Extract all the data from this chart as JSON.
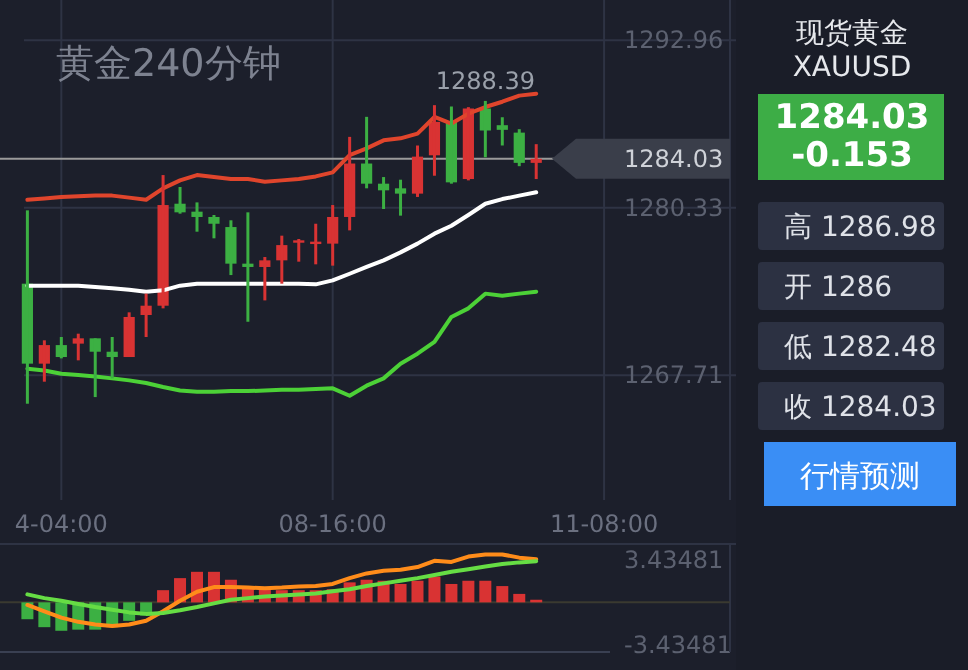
{
  "chart_data": [
    {
      "type": "candlestick",
      "title": "黄金240分钟",
      "categories": [
        null,
        null,
        "4-04:00",
        null,
        null,
        null,
        null,
        null,
        null,
        null,
        null,
        null,
        null,
        null,
        null,
        null,
        null,
        null,
        "08-16:00",
        null,
        null,
        null,
        null,
        null,
        null,
        null,
        null,
        null,
        null,
        null,
        null,
        null,
        null,
        null,
        "11-08:00"
      ],
      "ohlc": [
        [
          1274.61,
          1280.14,
          1265.56,
          1268.58
        ],
        [
          1268.58,
          1270.34,
          1267.22,
          1269.98
        ],
        [
          1269.98,
          1270.59,
          1268.98,
          1269.08
        ],
        [
          1270.09,
          1270.84,
          1268.83,
          1270.49
        ],
        [
          1270.49,
          1270.49,
          1266.06,
          1269.48
        ],
        [
          1269.48,
          1270.59,
          1267.47,
          1269.08
        ],
        [
          1269.08,
          1272.45,
          1269.08,
          1272.1
        ],
        [
          1272.25,
          1273.86,
          1270.59,
          1272.95
        ],
        [
          1272.95,
          1282.8,
          1272.75,
          1280.54
        ],
        [
          1280.64,
          1281.9,
          1279.89,
          1279.99
        ],
        [
          1280.04,
          1280.74,
          1278.53,
          1279.64
        ],
        [
          1279.64,
          1279.79,
          1278.03,
          1279.13
        ],
        [
          1278.88,
          1279.39,
          1275.26,
          1276.12
        ],
        [
          1276.12,
          1279.99,
          1271.74,
          1275.87
        ],
        [
          1275.87,
          1276.62,
          1273.35,
          1276.37
        ],
        [
          1276.37,
          1278.23,
          1274.61,
          1277.52
        ],
        [
          1277.78,
          1277.98,
          1276.27,
          1277.88
        ],
        [
          1277.63,
          1279.13,
          1276.07,
          1277.78
        ],
        [
          1277.63,
          1280.54,
          1275.97,
          1279.64
        ],
        [
          1279.64,
          1285.68,
          1278.63,
          1283.67
        ],
        [
          1283.67,
          1287.19,
          1281.8,
          1282.15
        ],
        [
          1282.15,
          1282.65,
          1280.24,
          1281.65
        ],
        [
          1281.8,
          1282.45,
          1279.74,
          1281.4
        ],
        [
          1281.4,
          1285.03,
          1281.15,
          1284.19
        ],
        [
          1284.29,
          1288.07,
          1282.75,
          1286.81
        ],
        [
          1286.81,
          1287.97,
          1282.15,
          1282.25
        ],
        [
          1282.5,
          1287.92,
          1282.4,
          1287.82
        ],
        [
          1287.82,
          1288.39,
          1284.14,
          1286.16
        ],
        [
          1286.56,
          1287.16,
          1285.03,
          1286.21
        ],
        [
          1286.0,
          1286.26,
          1283.47,
          1283.72
        ],
        [
          1283.72,
          1285.13,
          1282.5,
          1284.03
        ],
        null,
        null,
        null,
        null
      ],
      "colors": [
        "#3cb043",
        "#d93333",
        "#3cb043",
        "#d93333",
        "#3cb043",
        "#3cb043",
        "#d93333",
        "#d93333",
        "#d93333",
        "#3cb043",
        "#3cb043",
        "#3cb043",
        "#3cb043",
        "#3cb043",
        "#d93333",
        "#d93333",
        "#d93333",
        "#d93333",
        "#d93333",
        "#d93333",
        "#3cb043",
        "#3cb043",
        "#3cb043",
        "#d93333",
        "#d93333",
        "#3cb043",
        "#d93333",
        "#3cb043",
        "#3cb043",
        "#3cb043",
        "#d93333",
        null,
        null,
        null,
        null
      ],
      "series": [
        {
          "type": "line",
          "color": "#e0452c",
          "values": [
            1280.94,
            1281.04,
            1281.14,
            1281.2,
            1281.25,
            1281.25,
            1281.1,
            1280.94,
            1281.8,
            1282.4,
            1282.8,
            1282.65,
            1282.5,
            1282.5,
            1282.3,
            1282.4,
            1282.5,
            1282.7,
            1283.0,
            1284.31,
            1284.81,
            1285.42,
            1285.57,
            1285.92,
            1287.18,
            1286.68,
            1287.43,
            1287.93,
            1288.33,
            1288.79,
            1288.94,
            null,
            null,
            null,
            null
          ]
        },
        {
          "type": "line",
          "color": "#ffffff",
          "values": [
            1274.46,
            1274.46,
            1274.46,
            1274.46,
            1274.36,
            1274.26,
            1274.16,
            1274.01,
            1274.11,
            1274.46,
            1274.61,
            1274.61,
            1274.61,
            1274.61,
            1274.61,
            1274.61,
            1274.61,
            1274.56,
            1274.86,
            1275.36,
            1275.87,
            1276.37,
            1276.97,
            1277.63,
            1278.38,
            1278.98,
            1279.79,
            1280.64,
            1280.99,
            1281.25,
            1281.5,
            null,
            null,
            null,
            null
          ]
        },
        {
          "type": "line",
          "color": "#4cd137",
          "values": [
            1268.2,
            1268.07,
            1267.82,
            1267.72,
            1267.62,
            1267.47,
            1267.32,
            1267.12,
            1266.82,
            1266.56,
            1266.46,
            1266.46,
            1266.51,
            1266.51,
            1266.56,
            1266.61,
            1266.61,
            1266.67,
            1266.72,
            1266.16,
            1266.92,
            1267.47,
            1268.58,
            1269.33,
            1270.23,
            1272.1,
            1272.75,
            1273.86,
            1273.7,
            1273.86,
            1274.01,
            null,
            null,
            null,
            null
          ]
        }
      ],
      "ylim": [
        1258.3,
        1296.0
      ],
      "yticks": [
        1292.96,
        1280.33,
        1267.71
      ],
      "grid": true,
      "ref_lines": [
        {
          "axis": "y",
          "value": 1284.03,
          "label": "1284.03",
          "color": "#9a9a9a"
        }
      ],
      "annotations": [
        {
          "text": "1288.39",
          "y": 1288.39
        }
      ]
    },
    {
      "type": "bar",
      "series": [
        {
          "type": "bar",
          "colors": [
            "#3cb043",
            "#3cb043",
            "#3cb043",
            "#3cb043",
            "#3cb043",
            "#3cb043",
            "#3cb043",
            "#3cb043",
            "#d93333",
            "#d93333",
            "#d93333",
            "#d93333",
            "#d93333",
            "#d93333",
            "#d93333",
            "#d93333",
            "#d93333",
            "#d93333",
            "#d93333",
            "#d93333",
            "#d93333",
            "#d93333",
            "#d93333",
            "#d93333",
            "#d93333",
            "#d93333",
            "#d93333",
            "#d93333",
            "#d93333",
            "#d93333",
            "#d93333",
            null,
            null,
            null,
            null
          ],
          "values": [
            -1.36,
            -2.0,
            -2.29,
            -2.2,
            -2.2,
            -2.0,
            -1.49,
            -1.06,
            0.98,
            1.95,
            2.46,
            2.46,
            1.82,
            1.31,
            1.06,
            0.98,
            0.98,
            0.98,
            1.06,
            1.61,
            1.82,
            1.74,
            1.48,
            1.74,
            2.08,
            1.48,
            1.74,
            1.74,
            1.31,
            0.68,
            0.21,
            null,
            null,
            null,
            null
          ]
        },
        {
          "type": "line",
          "color": "#ff8c1a",
          "values": [
            -0.21,
            -0.72,
            -1.23,
            -1.57,
            -1.78,
            -1.91,
            -1.78,
            -1.48,
            -0.72,
            0.13,
            0.85,
            1.23,
            1.23,
            1.19,
            1.14,
            1.19,
            1.27,
            1.31,
            1.48,
            1.95,
            2.33,
            2.54,
            2.63,
            2.84,
            3.35,
            3.26,
            3.69,
            3.86,
            3.86,
            3.6,
            3.47,
            null,
            null,
            null,
            null
          ]
        },
        {
          "type": "line",
          "color": "#66dd44",
          "values": [
            0.64,
            0.34,
            0.13,
            -0.13,
            -0.38,
            -0.59,
            -0.81,
            -0.93,
            -0.85,
            -0.64,
            -0.38,
            -0.08,
            0.21,
            0.34,
            0.47,
            0.55,
            0.64,
            0.72,
            0.89,
            1.06,
            1.31,
            1.53,
            1.74,
            1.95,
            2.2,
            2.46,
            2.67,
            2.88,
            3.09,
            3.22,
            3.31,
            null,
            null,
            null,
            null
          ]
        }
      ],
      "ylim": [
        -4.0,
        4.7
      ],
      "yticks": [
        3.43481,
        -3.43481
      ],
      "tick_labels": "y",
      "ref_lines": [
        {
          "axis": "y",
          "value": 0,
          "color": "#3a3a30"
        }
      ]
    },
    {
      "type": "other",
      "title": "现货黄金",
      "subtitle": "XAUUSD",
      "annotations": [
        "1284.03",
        "-0.153",
        "高 1286.98",
        "开 1286",
        "低 1282.48",
        "收 1284.03",
        "行情预测"
      ]
    }
  ]
}
